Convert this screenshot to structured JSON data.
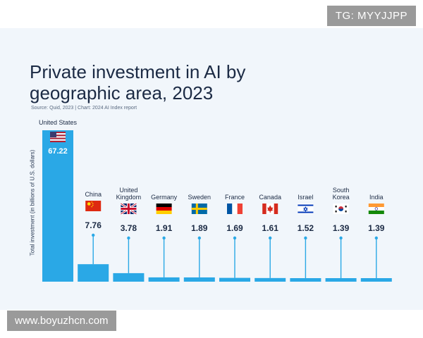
{
  "watermarks": {
    "top": "TG: MYYJJPP",
    "bottom": "www.boyuzhcn.com"
  },
  "colors": {
    "bar": "#2aa8e6",
    "text": "#1b2a44",
    "background": "#f1f6fb"
  },
  "chart_data": {
    "type": "bar",
    "title": "Private investment in AI by geographic area, 2023",
    "source": "Source: Quid, 2023 | Chart: 2024 AI Index report",
    "xlabel": "",
    "ylabel": "Total investment (in billions of U.S. dollars)",
    "ylim": [
      0,
      67.22
    ],
    "categories": [
      "United States",
      "China",
      "United Kingdom",
      "Germany",
      "Sweden",
      "France",
      "Canada",
      "Israel",
      "South Korea",
      "India"
    ],
    "values": [
      67.22,
      7.76,
      3.78,
      1.91,
      1.89,
      1.69,
      1.61,
      1.52,
      1.39,
      1.39
    ],
    "value_labels": [
      "67.22",
      "7.76",
      "3.78",
      "1.91",
      "1.89",
      "1.69",
      "1.61",
      "1.52",
      "1.39",
      "1.39"
    ],
    "flags": [
      "us-flag",
      "china-flag",
      "uk-flag",
      "germany-flag",
      "sweden-flag",
      "france-flag",
      "canada-flag",
      "israel-flag",
      "south-korea-flag",
      "india-flag"
    ]
  }
}
